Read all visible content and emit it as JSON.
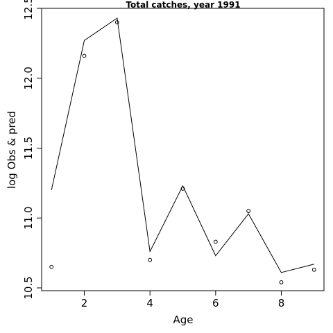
{
  "chart_data": {
    "type": "line",
    "title": "Total catches, year 1991",
    "xlabel": "Age",
    "ylabel": "log Obs & pred",
    "xlim": [
      0.7,
      9.3
    ],
    "ylim": [
      10.48,
      12.5
    ],
    "x_ticks": [
      2,
      4,
      6,
      8
    ],
    "y_ticks": [
      10.5,
      11.0,
      11.5,
      12.0,
      12.5
    ],
    "x_tick_labels": [
      "2",
      "4",
      "6",
      "8"
    ],
    "y_tick_labels": [
      "10.5",
      "11.0",
      "11.5",
      "12.0",
      "12.5"
    ],
    "grid": false,
    "series": [
      {
        "style": "line",
        "x": [
          1,
          2,
          3,
          4,
          5,
          6,
          7,
          8,
          9
        ],
        "values": [
          11.2,
          12.27,
          12.43,
          10.76,
          11.23,
          10.73,
          11.03,
          10.61,
          10.67
        ]
      },
      {
        "style": "points",
        "x": [
          1,
          2,
          3,
          4,
          5,
          6,
          7,
          8,
          9
        ],
        "values": [
          10.65,
          12.16,
          12.4,
          10.7,
          11.21,
          10.83,
          11.05,
          10.54,
          10.63
        ]
      }
    ]
  }
}
